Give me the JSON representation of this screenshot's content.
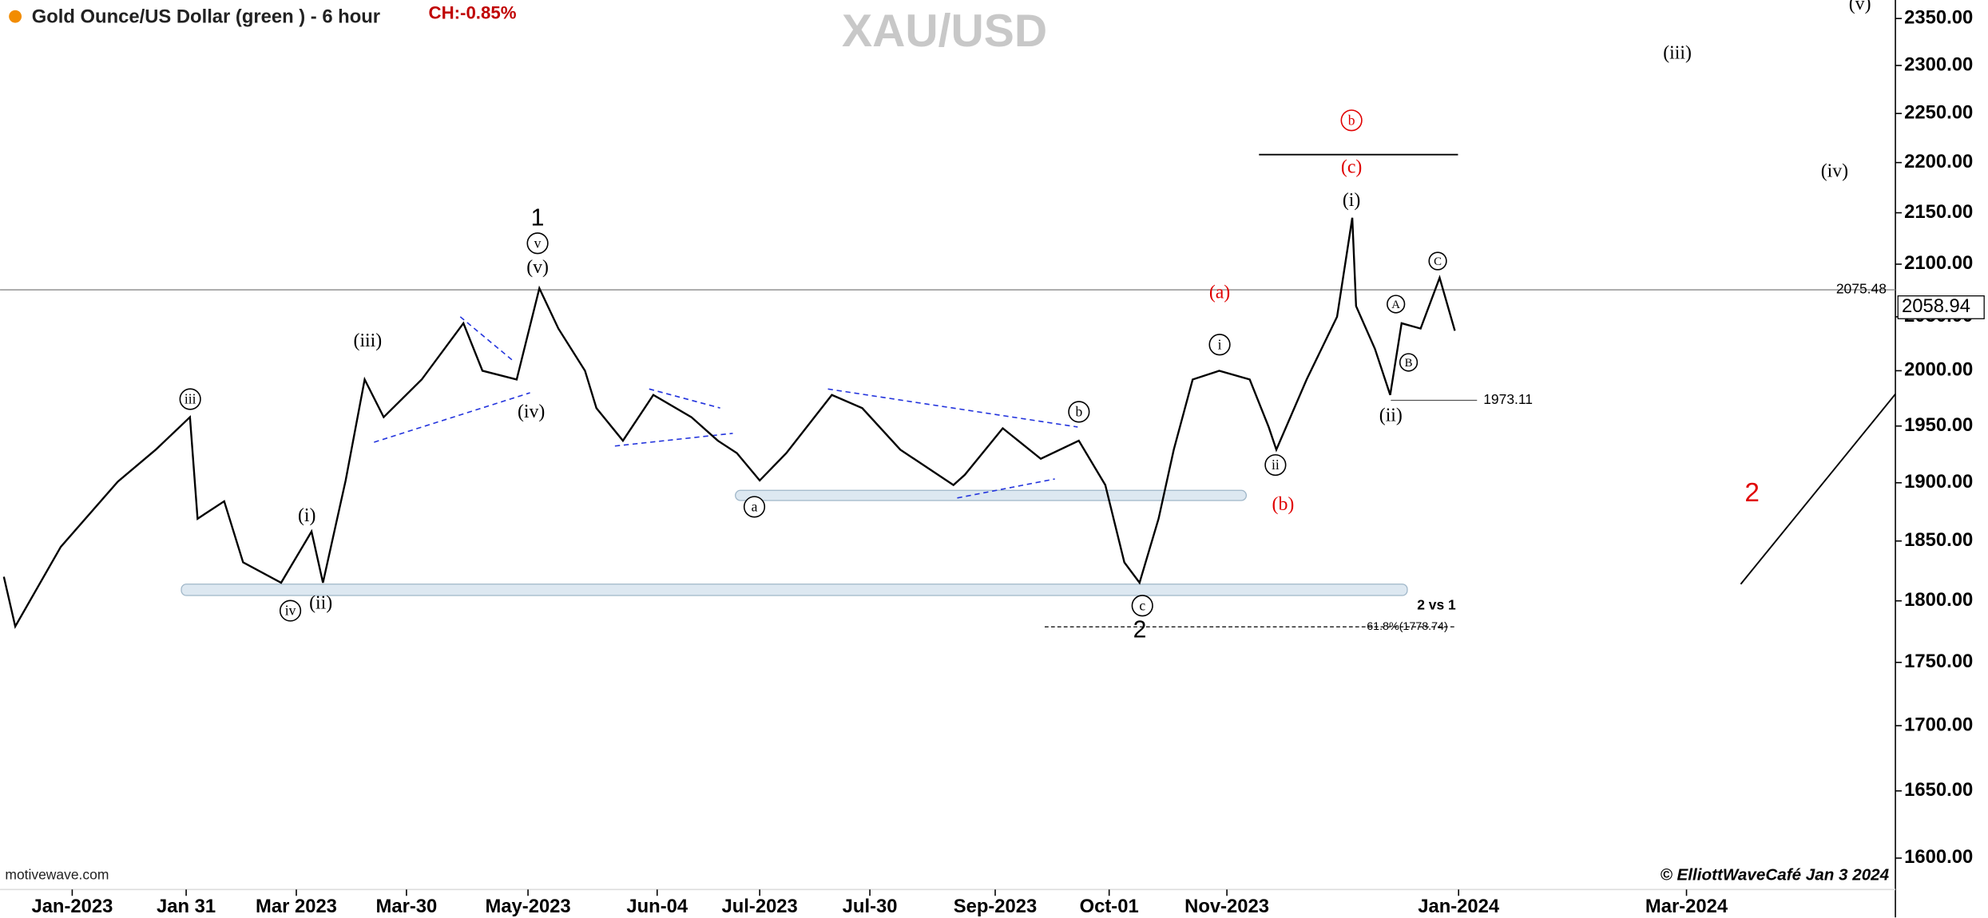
{
  "chart_data": {
    "type": "line",
    "title": "XAU/USD",
    "subtitle": "Gold Ounce/US Dollar (green ) - 6 hour",
    "change": "CH:-0.85%",
    "source": "motivewave.com",
    "credit": "© ElliottWaveCafé Jan 3 2024",
    "log_scale": true,
    "color": "#000000",
    "x": [
      "2022-12-14",
      "2022-12-17",
      "2022-12-29",
      "2023-01-13",
      "2023-01-23",
      "2023-02-01",
      "2023-02-03",
      "2023-02-10",
      "2023-02-15",
      "2023-02-25",
      "2023-03-05",
      "2023-03-08",
      "2023-03-14",
      "2023-03-19",
      "2023-03-24",
      "2023-04-03",
      "2023-04-14",
      "2023-04-19",
      "2023-04-28",
      "2023-05-04",
      "2023-05-09",
      "2023-05-16",
      "2023-05-19",
      "2023-05-26",
      "2023-06-03",
      "2023-06-13",
      "2023-06-20",
      "2023-06-25",
      "2023-07-01",
      "2023-07-08",
      "2023-07-20",
      "2023-07-28",
      "2023-08-07",
      "2023-08-21",
      "2023-08-24",
      "2023-09-03",
      "2023-09-13",
      "2023-09-23",
      "2023-09-30",
      "2023-10-05",
      "2023-10-09",
      "2023-10-14",
      "2023-10-18",
      "2023-10-23",
      "2023-10-30",
      "2023-11-07",
      "2023-11-12",
      "2023-11-14",
      "2023-11-22",
      "2023-11-30",
      "2023-12-04",
      "2023-12-05",
      "2023-12-10",
      "2023-12-14",
      "2023-12-17",
      "2023-12-22",
      "2023-12-27",
      "2023-12-31"
    ],
    "values": [
      1820,
      1779,
      1845,
      1901,
      1929,
      1958,
      1869,
      1884,
      1832,
      1815,
      1858,
      1815,
      1902,
      1992,
      1958,
      1992,
      2044,
      2000,
      1992,
      2077,
      2039,
      2000,
      1966,
      1937,
      1978,
      1958,
      1937,
      1926,
      1902,
      1926,
      1978,
      1966,
      1929,
      1898,
      1907,
      1948,
      1921,
      1937,
      1898,
      1832,
      1815,
      1869,
      1929,
      1992,
      2000,
      1992,
      1949,
      1929,
      1992,
      2050,
      2145,
      2060,
      2020,
      1978,
      2044,
      2039,
      2087,
      2037
    ],
    "xlim": [
      "2022-12-13",
      "2024-04-25"
    ],
    "xticks": [
      {
        "value": "2023-01-01",
        "label": "Jan-2023"
      },
      {
        "value": "2023-01-31",
        "label": "Jan 31"
      },
      {
        "value": "2023-03-01",
        "label": "Mar 2023"
      },
      {
        "value": "2023-03-30",
        "label": "Mar-30"
      },
      {
        "value": "2023-05-01",
        "label": "May-2023"
      },
      {
        "value": "2023-06-04",
        "label": "Jun-04"
      },
      {
        "value": "2023-07-01",
        "label": "Jul-2023"
      },
      {
        "value": "2023-07-30",
        "label": "Jul-30"
      },
      {
        "value": "2023-09-01",
        "label": "Sep-2023"
      },
      {
        "value": "2023-10-01",
        "label": "Oct-01"
      },
      {
        "value": "2023-11-01",
        "label": "Nov-2023"
      },
      {
        "value": "2024-01-01",
        "label": "Jan-2024"
      },
      {
        "value": "2024-03-01",
        "label": "Mar-2024"
      }
    ],
    "ylim": [
      1579,
      2370
    ],
    "yticks": [
      {
        "value": 1600,
        "label": "1600.00"
      },
      {
        "value": 1650,
        "label": "1650.00"
      },
      {
        "value": 1700,
        "label": "1700.00"
      },
      {
        "value": 1750,
        "label": "1750.00"
      },
      {
        "value": 1800,
        "label": "1800.00"
      },
      {
        "value": 1850,
        "label": "1850.00"
      },
      {
        "value": 1900,
        "label": "1900.00"
      },
      {
        "value": 1950,
        "label": "1950.00"
      },
      {
        "value": 2000,
        "label": "2000.00"
      },
      {
        "value": 2050,
        "label": "2050.00"
      },
      {
        "value": 2100,
        "label": "2100.00"
      },
      {
        "value": 2150,
        "label": "2150.00"
      },
      {
        "value": 2200,
        "label": "2200.00"
      },
      {
        "value": 2250,
        "label": "2250.00"
      },
      {
        "value": 2300,
        "label": "2300.00"
      },
      {
        "value": 2350,
        "label": "2350.00"
      }
    ],
    "last_price": 2058.94,
    "hlines": [
      2075.48,
      1973.11,
      {
        "value": 1778.74,
        "label": "61.8%(1778.74)"
      }
    ],
    "annotations": [
      "1",
      "v",
      "(v)",
      "(iii)",
      "(iv)",
      "iii",
      "(i)",
      "iv",
      "(ii)",
      "a",
      "b",
      "c",
      "2",
      "(a)",
      "(b)",
      "b",
      "(c)",
      "(i)",
      "i",
      "ii",
      "(ii)",
      "A",
      "B",
      "C",
      "2 vs 1",
      "(iii)",
      "(iv)",
      "(v)",
      "2"
    ]
  }
}
